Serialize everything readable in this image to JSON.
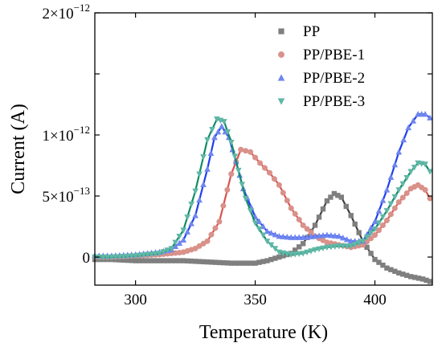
{
  "chart_data": {
    "type": "scatter",
    "xlabel": "Temperature (K)",
    "ylabel": "Current (A)",
    "xlim": [
      283,
      424
    ],
    "ylim": [
      -2.3e-13,
      2e-12
    ],
    "x_ticks": [
      300,
      350,
      400
    ],
    "x_tick_labels": [
      "300",
      "350",
      "400"
    ],
    "y_ticks": [
      0,
      5e-13,
      1e-12,
      1.5e-12,
      2e-12
    ],
    "y_tick_labels": [
      {
        "base": "0",
        "exp": ""
      },
      {
        "base": "5×10",
        "exp": "−13"
      },
      {
        "base": "1×10",
        "exp": "−12"
      },
      {
        "base": "",
        "exp": ""
      },
      {
        "base": "2×10",
        "exp": "−12"
      }
    ],
    "grid": false,
    "legend_position": "top-right",
    "series": [
      {
        "name": "PP",
        "marker": "square",
        "color": "#7f7f7f",
        "line_color": "#3f3f3f",
        "points": [
          [
            283,
            -2e-14
          ],
          [
            290,
            -2e-14
          ],
          [
            300,
            -3e-14
          ],
          [
            310,
            -3e-14
          ],
          [
            320,
            -3e-14
          ],
          [
            330,
            -4e-14
          ],
          [
            340,
            -5e-14
          ],
          [
            350,
            -5e-14
          ],
          [
            355,
            -3e-14
          ],
          [
            360,
            0
          ],
          [
            365,
            3e-14
          ],
          [
            370,
            1.1e-13
          ],
          [
            375,
            2.6e-13
          ],
          [
            380,
            4.6e-13
          ],
          [
            383,
            5.2e-13
          ],
          [
            386,
            4.9e-13
          ],
          [
            390,
            3.4e-13
          ],
          [
            395,
            1.3e-13
          ],
          [
            400,
            -2e-14
          ],
          [
            405,
            -9e-14
          ],
          [
            410,
            -1.3e-13
          ],
          [
            415,
            -1.6e-13
          ],
          [
            420,
            -1.8e-13
          ],
          [
            423,
            -2e-13
          ]
        ]
      },
      {
        "name": "PP/PBE-1",
        "marker": "circle",
        "color": "#d9918a",
        "line_color": "#d9534f",
        "points": [
          [
            283,
            0
          ],
          [
            290,
            0
          ],
          [
            300,
            1e-14
          ],
          [
            310,
            2e-14
          ],
          [
            320,
            4e-14
          ],
          [
            325,
            7e-14
          ],
          [
            330,
            1.3e-13
          ],
          [
            335,
            2.9e-13
          ],
          [
            340,
            6.8e-13
          ],
          [
            344,
            8.8e-13
          ],
          [
            348,
            8.6e-13
          ],
          [
            352,
            7.7e-13
          ],
          [
            356,
            6.9e-13
          ],
          [
            360,
            5.9e-13
          ],
          [
            365,
            4e-13
          ],
          [
            370,
            2.6e-13
          ],
          [
            375,
            1.7e-13
          ],
          [
            380,
            1.2e-13
          ],
          [
            385,
            1e-13
          ],
          [
            390,
            8e-14
          ],
          [
            395,
            1e-13
          ],
          [
            400,
            1.8e-13
          ],
          [
            405,
            3e-13
          ],
          [
            410,
            4.5e-13
          ],
          [
            415,
            5.6e-13
          ],
          [
            418,
            5.9e-13
          ],
          [
            421,
            5.5e-13
          ],
          [
            423,
            4.8e-13
          ]
        ]
      },
      {
        "name": "PP/PBE-2",
        "marker": "triangle-up",
        "color": "#6f86ee",
        "line_color": "#1f3ff0",
        "points": [
          [
            283,
            1e-14
          ],
          [
            290,
            1e-14
          ],
          [
            300,
            2e-14
          ],
          [
            310,
            4e-14
          ],
          [
            315,
            6e-14
          ],
          [
            320,
            1.4e-13
          ],
          [
            325,
            3.4e-13
          ],
          [
            330,
            7.2e-13
          ],
          [
            333,
            9.8e-13
          ],
          [
            336,
            1.07e-12
          ],
          [
            339,
            9.8e-13
          ],
          [
            342,
            7.8e-13
          ],
          [
            345,
            5.6e-13
          ],
          [
            350,
            3.3e-13
          ],
          [
            355,
            2.1e-13
          ],
          [
            360,
            1.7e-13
          ],
          [
            365,
            1.6e-13
          ],
          [
            370,
            1.6e-13
          ],
          [
            375,
            1.7e-13
          ],
          [
            380,
            1.8e-13
          ],
          [
            385,
            1.7e-13
          ],
          [
            390,
            1.3e-13
          ],
          [
            395,
            1.3e-13
          ],
          [
            400,
            2.9e-13
          ],
          [
            405,
            5.5e-13
          ],
          [
            410,
            8.6e-13
          ],
          [
            414,
            1.06e-12
          ],
          [
            418,
            1.17e-12
          ],
          [
            421,
            1.17e-12
          ],
          [
            423,
            1.14e-12
          ]
        ]
      },
      {
        "name": "PP/PBE-3",
        "marker": "triangle-down",
        "color": "#5fb7a6",
        "line_color": "#128b64",
        "points": [
          [
            283,
            0
          ],
          [
            290,
            0
          ],
          [
            300,
            1e-14
          ],
          [
            310,
            3e-14
          ],
          [
            315,
            7e-14
          ],
          [
            320,
            2.2e-13
          ],
          [
            325,
            5.4e-13
          ],
          [
            330,
            9.6e-13
          ],
          [
            334,
            1.13e-12
          ],
          [
            337,
            1.11e-12
          ],
          [
            340,
            9.4e-13
          ],
          [
            343,
            7.1e-13
          ],
          [
            346,
            4.8e-13
          ],
          [
            350,
            2.8e-13
          ],
          [
            355,
            1.3e-13
          ],
          [
            360,
            4e-14
          ],
          [
            365,
            2e-14
          ],
          [
            370,
            3e-14
          ],
          [
            375,
            6e-14
          ],
          [
            380,
            8e-14
          ],
          [
            385,
            9e-14
          ],
          [
            390,
            9e-14
          ],
          [
            395,
            1.3e-13
          ],
          [
            400,
            2.3e-13
          ],
          [
            405,
            3.8e-13
          ],
          [
            410,
            5.5e-13
          ],
          [
            415,
            7e-13
          ],
          [
            418,
            7.7e-13
          ],
          [
            421,
            7.6e-13
          ],
          [
            423,
            7e-13
          ]
        ]
      }
    ]
  }
}
